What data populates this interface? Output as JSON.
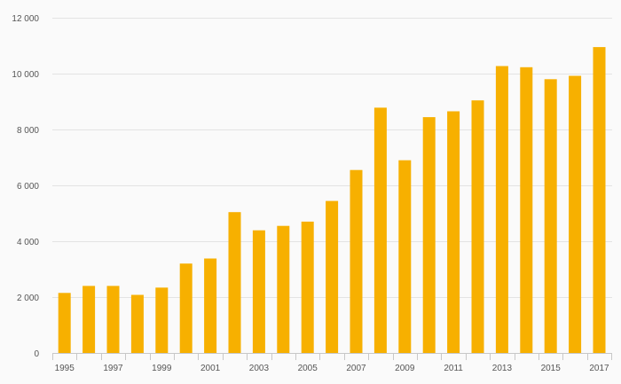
{
  "chart_data": {
    "type": "bar",
    "title": "",
    "xlabel": "",
    "ylabel": "",
    "categories": [
      "1995",
      "1996",
      "1997",
      "1998",
      "1999",
      "2000",
      "2001",
      "2002",
      "2003",
      "2004",
      "2005",
      "2006",
      "2007",
      "2008",
      "2009",
      "2010",
      "2011",
      "2012",
      "2013",
      "2014",
      "2015",
      "2016",
      "2017"
    ],
    "x_tick_labels_shown": [
      "1995",
      "1997",
      "1999",
      "2001",
      "2003",
      "2005",
      "2007",
      "2009",
      "2011",
      "2013",
      "2015",
      "2017"
    ],
    "values": [
      2150,
      2400,
      2400,
      2080,
      2340,
      3200,
      3380,
      5040,
      4390,
      4550,
      4700,
      5440,
      6550,
      8780,
      6900,
      8440,
      8650,
      9040,
      10270,
      10230,
      9800,
      9920,
      10950
    ],
    "y_ticks": [
      0,
      2000,
      4000,
      6000,
      8000,
      10000,
      12000
    ],
    "y_tick_labels": [
      "0",
      "2 000",
      "4 000",
      "6 000",
      "8 000",
      "10 000",
      "12 000"
    ],
    "ylim": [
      0,
      12000
    ],
    "grid": true,
    "legend": "none",
    "bar_color": "#f7b000"
  }
}
